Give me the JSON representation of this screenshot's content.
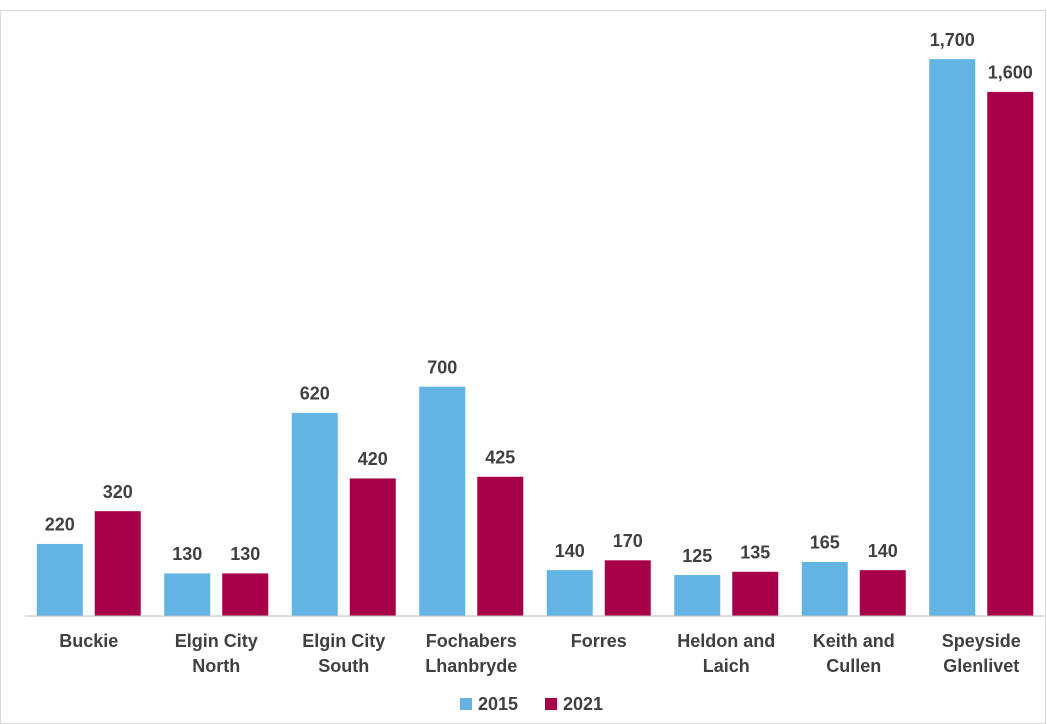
{
  "chart_data": {
    "type": "bar",
    "categories": [
      [
        "Buckie"
      ],
      [
        "Elgin City",
        "North"
      ],
      [
        "Elgin City",
        "South"
      ],
      [
        "Fochabers",
        "Lhanbryde"
      ],
      [
        "Forres"
      ],
      [
        "Heldon and",
        "Laich"
      ],
      [
        "Keith and",
        "Cullen"
      ],
      [
        "Speyside",
        "Glenlivet"
      ]
    ],
    "series": [
      {
        "name": "2015",
        "color": "#63b3e3",
        "values": [
          220,
          130,
          620,
          700,
          140,
          125,
          165,
          1700
        ],
        "value_labels": [
          "220",
          "130",
          "620",
          "700",
          "140",
          "125",
          "165",
          "1,700"
        ]
      },
      {
        "name": "2021",
        "color": "#a50048",
        "values": [
          320,
          130,
          420,
          425,
          170,
          135,
          140,
          1600
        ],
        "value_labels": [
          "320",
          "130",
          "420",
          "425",
          "170",
          "135",
          "140",
          "1,600"
        ]
      }
    ],
    "ylim": [
      0,
      1850
    ],
    "yticks": [],
    "grid": false,
    "legend": "bottom"
  }
}
